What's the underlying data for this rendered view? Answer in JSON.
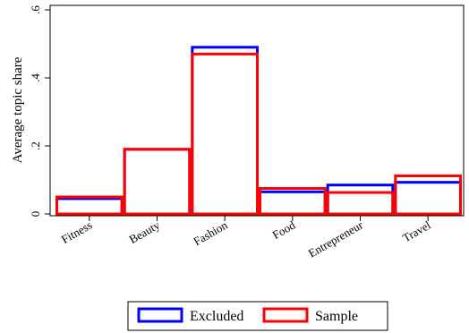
{
  "chart_data": {
    "type": "bar",
    "title": "",
    "xlabel": "",
    "ylabel": "Average topic share",
    "ylim": [
      0,
      0.6
    ],
    "yticks": [
      0,
      0.2,
      0.4,
      0.6
    ],
    "ytick_labels": [
      "0",
      ".2",
      ".4",
      ".6"
    ],
    "categories": [
      "Fitness",
      "Beauty",
      "Fashion",
      "Food",
      "Entrepreneur",
      "Travel"
    ],
    "series": [
      {
        "name": "Excluded",
        "color": "#0000ff",
        "values": [
          0.045,
          0.19,
          0.49,
          0.065,
          0.085,
          0.093
        ]
      },
      {
        "name": "Sample",
        "color": "#ff0000",
        "values": [
          0.05,
          0.19,
          0.47,
          0.075,
          0.063,
          0.112
        ]
      }
    ],
    "grid": false,
    "legend_position": "bottom"
  }
}
